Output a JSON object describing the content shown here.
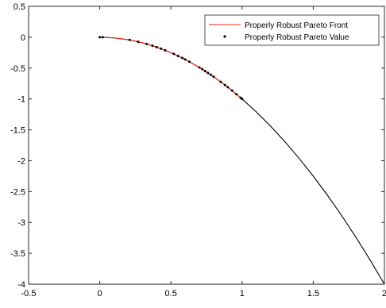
{
  "chart_data": {
    "type": "line",
    "xlim": [
      -0.5,
      2
    ],
    "ylim": [
      -4,
      0.5
    ],
    "xticks": [
      "-0.5",
      "0",
      "0.5",
      "1",
      "1.5",
      "2"
    ],
    "yticks": [
      "0.5",
      "0",
      "-0.5",
      "-1",
      "-1.5",
      "-2",
      "-2.5",
      "-3",
      "-3.5",
      "-4"
    ],
    "grid": false,
    "legend_position": "top-right",
    "series": [
      {
        "name": "",
        "kind": "line",
        "color": "#000000",
        "x": [
          0,
          0.1,
          0.2,
          0.3,
          0.4,
          0.5,
          0.6,
          0.7,
          0.8,
          0.9,
          1.0,
          1.1,
          1.2,
          1.3,
          1.4,
          1.5,
          1.6,
          1.7,
          1.8,
          1.9,
          2.0
        ],
        "y": [
          0,
          -0.01,
          -0.04,
          -0.09,
          -0.16,
          -0.25,
          -0.36,
          -0.49,
          -0.64,
          -0.81,
          -1.0,
          -1.21,
          -1.44,
          -1.69,
          -1.96,
          -2.25,
          -2.56,
          -2.89,
          -3.24,
          -3.61,
          -4.0
        ]
      },
      {
        "name": "Properly Robust Pareto Front",
        "kind": "line",
        "color": "#e8291c",
        "x": [
          0,
          0.1,
          0.2,
          0.3,
          0.4,
          0.5,
          0.6,
          0.7,
          0.8,
          0.9,
          1.0
        ],
        "y": [
          0,
          -0.01,
          -0.04,
          -0.09,
          -0.16,
          -0.25,
          -0.36,
          -0.49,
          -0.64,
          -0.81,
          -1.0
        ]
      },
      {
        "name": "Properly Robust Pareto Value",
        "kind": "scatter",
        "color": "#000000",
        "x": [
          0,
          0.02,
          0.21,
          0.27,
          0.33,
          0.37,
          0.4,
          0.43,
          0.46,
          0.52,
          0.55,
          0.58,
          0.6,
          0.63,
          0.7,
          0.72,
          0.74,
          0.76,
          0.78,
          0.8,
          0.85,
          0.88,
          0.9,
          0.93,
          0.96,
          0.99,
          1.0
        ],
        "y": [
          0,
          0,
          -0.044,
          -0.073,
          -0.109,
          -0.137,
          -0.16,
          -0.185,
          -0.212,
          -0.27,
          -0.303,
          -0.336,
          -0.36,
          -0.397,
          -0.49,
          -0.518,
          -0.548,
          -0.578,
          -0.608,
          -0.64,
          -0.723,
          -0.774,
          -0.81,
          -0.865,
          -0.922,
          -0.98,
          -1.0
        ]
      }
    ]
  }
}
